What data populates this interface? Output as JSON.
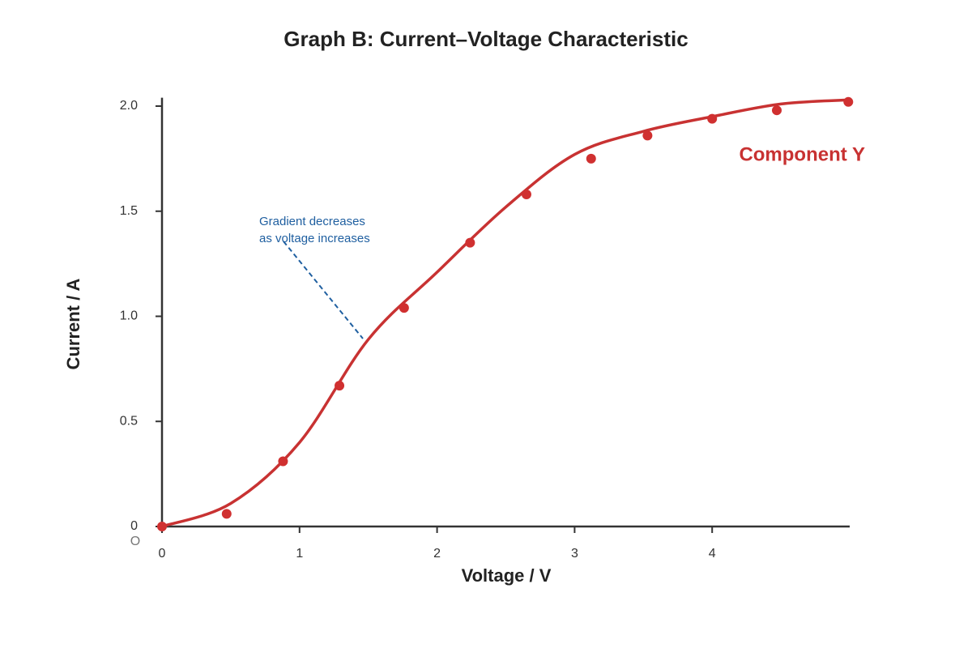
{
  "chart_data": {
    "type": "scatter",
    "title": "Graph B: Current–Voltage Characteristic",
    "x_label": "Voltage / V",
    "y_label": "Current / A",
    "origin_label": "O",
    "annotation": [
      "Gradient decreases",
      "as voltage increases"
    ],
    "xlim": [
      0,
      5
    ],
    "ylim": [
      0,
      2.04
    ],
    "xticks": [
      0,
      1,
      2,
      3,
      4
    ],
    "yticks": [
      0,
      0.5,
      {
        "value": 1.0,
        "label": "1.0"
      },
      1.5,
      {
        "value": 2.0,
        "label": "2.0"
      }
    ],
    "grid": false,
    "series": [
      {
        "name": "Component Y",
        "color": "#d03030",
        "x": [
          0,
          0.47,
          0.88,
          1.29,
          1.76,
          2.24,
          2.65,
          3.12,
          3.53,
          4.0,
          4.47,
          4.99
        ],
        "values": [
          0,
          0.06,
          0.31,
          0.67,
          1.04,
          1.35,
          1.58,
          1.75,
          1.86,
          1.94,
          1.98,
          2.02
        ]
      },
      {
        "type": "line",
        "color": "#c83232",
        "x": [
          0,
          0.5,
          1.0,
          1.5,
          2.0,
          2.5,
          3.0,
          3.5,
          4.0,
          4.5,
          5.0
        ],
        "values": [
          0,
          0.11,
          0.4,
          0.89,
          1.21,
          1.52,
          1.77,
          1.88,
          1.95,
          2.01,
          2.03
        ]
      }
    ]
  }
}
